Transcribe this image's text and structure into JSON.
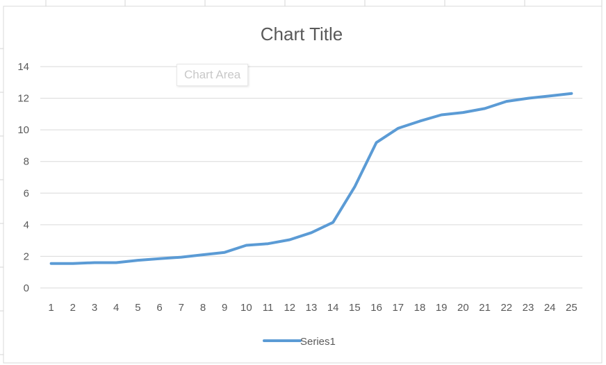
{
  "chart_data": {
    "type": "line",
    "title": "Chart Title",
    "categories": [
      "1",
      "2",
      "3",
      "4",
      "5",
      "6",
      "7",
      "8",
      "9",
      "10",
      "11",
      "12",
      "13",
      "14",
      "15",
      "16",
      "17",
      "18",
      "19",
      "20",
      "21",
      "22",
      "23",
      "24",
      "25"
    ],
    "series": [
      {
        "name": "Series1",
        "color": "#5b9bd5",
        "values": [
          1.55,
          1.55,
          1.6,
          1.6,
          1.75,
          1.85,
          1.95,
          2.1,
          2.25,
          2.7,
          2.8,
          3.05,
          3.5,
          4.15,
          6.4,
          9.2,
          10.1,
          10.55,
          10.95,
          11.1,
          11.35,
          11.8,
          12.0,
          12.15,
          12.3
        ]
      }
    ],
    "yticks": [
      "0",
      "2",
      "4",
      "6",
      "8",
      "10",
      "12",
      "14"
    ],
    "ylim": [
      0,
      14
    ],
    "grid": true,
    "legend": "bottom"
  },
  "tooltip": {
    "label": "Chart Area"
  }
}
